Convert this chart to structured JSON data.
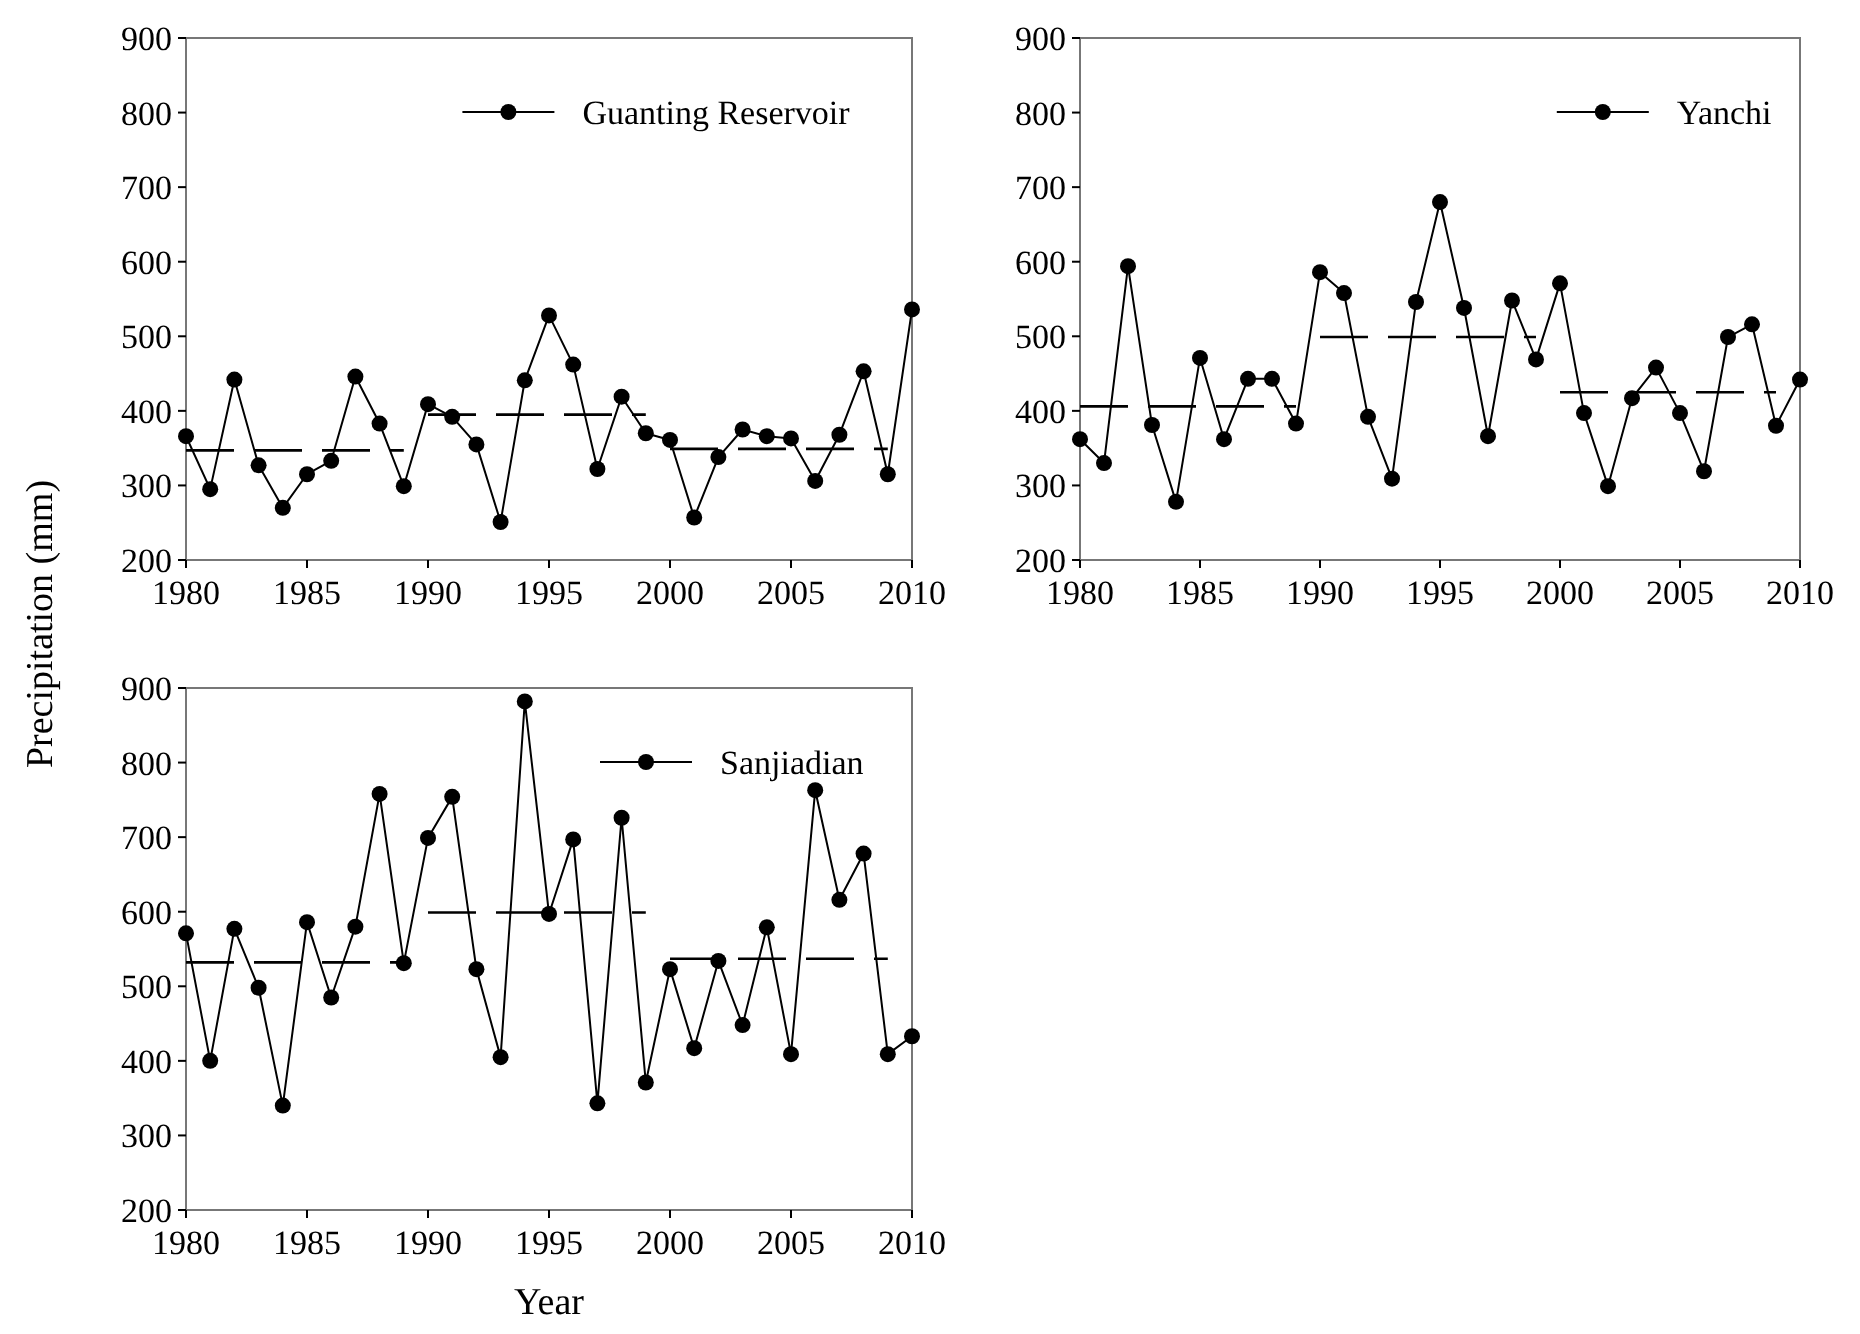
{
  "chart_data": [
    {
      "type": "line",
      "xlim": [
        1980,
        2010
      ],
      "ylim": [
        200,
        900
      ],
      "xticks": [
        1980,
        1985,
        1990,
        1995,
        2000,
        2005,
        2010
      ],
      "yticks": [
        200,
        300,
        400,
        500,
        600,
        700,
        800,
        900
      ],
      "marker": "circle",
      "legend": "top right",
      "grid": false,
      "series": [
        {
          "name": "Guanting Reservoir",
          "color": "#000000",
          "x": [
            1980,
            1981,
            1982,
            1983,
            1984,
            1985,
            1986,
            1987,
            1988,
            1989,
            1990,
            1991,
            1992,
            1993,
            1994,
            1995,
            1996,
            1997,
            1998,
            1999,
            2000,
            2001,
            2002,
            2003,
            2004,
            2005,
            2006,
            2007,
            2008,
            2009,
            2010
          ],
          "values": [
            366,
            295,
            442,
            327,
            270,
            315,
            333,
            446,
            383,
            299,
            409,
            392,
            355,
            251,
            441,
            528,
            462,
            322,
            419,
            370,
            361,
            257,
            338,
            375,
            366,
            363,
            306,
            368,
            453,
            315,
            536
          ]
        },
        {
          "type": "line",
          "color": "#000000",
          "line_style": "dashed",
          "marker": "none",
          "x": [
            1980,
            1989
          ],
          "values": [
            347,
            347
          ]
        },
        {
          "type": "line",
          "color": "#000000",
          "line_style": "dashed",
          "marker": "none",
          "x": [
            1990,
            1999
          ],
          "values": [
            395,
            395
          ]
        },
        {
          "type": "line",
          "color": "#000000",
          "line_style": "dashed",
          "marker": "none",
          "x": [
            2000,
            2009
          ],
          "values": [
            349,
            349
          ]
        }
      ]
    },
    {
      "type": "line",
      "xlim": [
        1980,
        2010
      ],
      "ylim": [
        200,
        900
      ],
      "xticks": [
        1980,
        1985,
        1990,
        1995,
        2000,
        2005,
        2010
      ],
      "yticks": [
        200,
        300,
        400,
        500,
        600,
        700,
        800,
        900
      ],
      "marker": "circle",
      "legend": "top right",
      "grid": false,
      "series": [
        {
          "name": "Yanchi",
          "color": "#000000",
          "x": [
            1980,
            1981,
            1982,
            1983,
            1984,
            1985,
            1986,
            1987,
            1988,
            1989,
            1990,
            1991,
            1992,
            1993,
            1994,
            1995,
            1996,
            1997,
            1998,
            1999,
            2000,
            2001,
            2002,
            2003,
            2004,
            2005,
            2006,
            2007,
            2008,
            2009,
            2010
          ],
          "values": [
            362,
            330,
            594,
            381,
            278,
            471,
            362,
            443,
            443,
            383,
            586,
            558,
            392,
            309,
            546,
            680,
            538,
            366,
            548,
            469,
            571,
            397,
            299,
            417,
            458,
            397,
            319,
            499,
            516,
            380,
            442
          ]
        },
        {
          "type": "line",
          "color": "#000000",
          "line_style": "dashed",
          "marker": "none",
          "x": [
            1980,
            1989
          ],
          "values": [
            406,
            406
          ]
        },
        {
          "type": "line",
          "color": "#000000",
          "line_style": "dashed",
          "marker": "none",
          "x": [
            1990,
            1999
          ],
          "values": [
            499,
            499
          ]
        },
        {
          "type": "line",
          "color": "#000000",
          "line_style": "dashed",
          "marker": "none",
          "x": [
            2000,
            2009
          ],
          "values": [
            425,
            425
          ]
        }
      ]
    },
    {
      "type": "line",
      "xlabel": "Year",
      "ylabel": "Precipitation (mm)",
      "xlim": [
        1980,
        2010
      ],
      "ylim": [
        200,
        900
      ],
      "xticks": [
        1980,
        1985,
        1990,
        1995,
        2000,
        2005,
        2010
      ],
      "yticks": [
        200,
        300,
        400,
        500,
        600,
        700,
        800,
        900
      ],
      "marker": "circle",
      "legend": "top right",
      "grid": false,
      "series": [
        {
          "name": "Sanjiadian",
          "color": "#000000",
          "x": [
            1980,
            1981,
            1982,
            1983,
            1984,
            1985,
            1986,
            1987,
            1988,
            1989,
            1990,
            1991,
            1992,
            1993,
            1994,
            1995,
            1996,
            1997,
            1998,
            1999,
            2000,
            2001,
            2002,
            2003,
            2004,
            2005,
            2006,
            2007,
            2008,
            2009,
            2010
          ],
          "values": [
            571,
            400,
            577,
            498,
            340,
            586,
            485,
            580,
            758,
            531,
            699,
            754,
            523,
            405,
            882,
            597,
            697,
            343,
            726,
            371,
            523,
            417,
            534,
            448,
            579,
            409,
            763,
            616,
            678,
            409,
            433
          ]
        },
        {
          "type": "line",
          "color": "#000000",
          "line_style": "dashed",
          "marker": "none",
          "x": [
            1980,
            1989
          ],
          "values": [
            532,
            532
          ]
        },
        {
          "type": "line",
          "color": "#000000",
          "line_style": "dashed",
          "marker": "none",
          "x": [
            1990,
            1999
          ],
          "values": [
            599,
            599
          ]
        },
        {
          "type": "line",
          "color": "#000000",
          "line_style": "dashed",
          "marker": "none",
          "x": [
            2000,
            2009
          ],
          "values": [
            537,
            537
          ]
        }
      ]
    }
  ]
}
